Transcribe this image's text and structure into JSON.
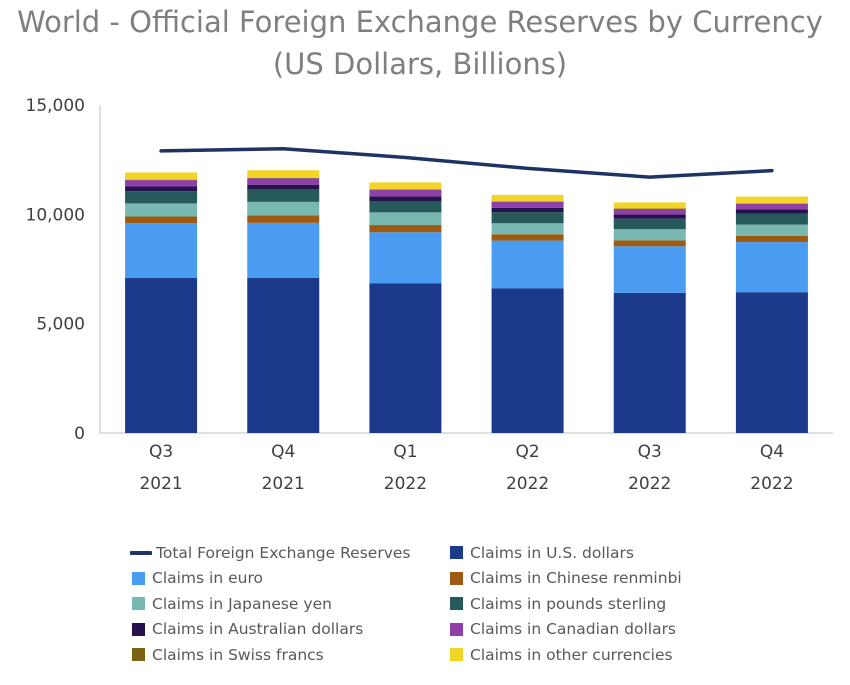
{
  "title_line1": "World - Official Foreign Exchange Reserves by Currency",
  "title_line2": "(US Dollars, Billions)",
  "chart_data": {
    "type": "bar",
    "stacked": true,
    "categories": [
      [
        "Q3",
        "2021"
      ],
      [
        "Q4",
        "2021"
      ],
      [
        "Q1",
        "2022"
      ],
      [
        "Q2",
        "2022"
      ],
      [
        "Q3",
        "2022"
      ],
      [
        "Q4",
        "2022"
      ]
    ],
    "ylim": [
      0,
      15000
    ],
    "yticks": [
      0,
      5000,
      10000,
      15000
    ],
    "ytick_labels": [
      "0",
      "5,000",
      "10,000",
      "15,000"
    ],
    "grid": false,
    "legend_position": "bottom",
    "series": [
      {
        "name": "Claims in U.S. dollars",
        "color": "#1b3a8c",
        "values": [
          7090,
          7090,
          6850,
          6620,
          6410,
          6440
        ]
      },
      {
        "name": "Claims in euro",
        "color": "#4a9cf0",
        "values": [
          2500,
          2520,
          2330,
          2180,
          2130,
          2290
        ]
      },
      {
        "name": "Claims in Chinese renminbi",
        "color": "#9c5a12",
        "values": [
          310,
          340,
          330,
          290,
          270,
          280
        ]
      },
      {
        "name": "Claims in Japanese yen",
        "color": "#79b8b0",
        "values": [
          600,
          620,
          580,
          500,
          510,
          520
        ]
      },
      {
        "name": "Claims in pounds sterling",
        "color": "#265a5a",
        "values": [
          560,
          570,
          520,
          510,
          480,
          510
        ]
      },
      {
        "name": "Claims in Australian dollars",
        "color": "#26134d",
        "values": [
          215,
          215,
          215,
          200,
          190,
          185
        ]
      },
      {
        "name": "Claims in Canadian dollars",
        "color": "#8e3fa8",
        "values": [
          290,
          290,
          290,
          270,
          255,
          255
        ]
      },
      {
        "name": "Claims in Swiss francs",
        "color": "#7a6414",
        "values": [
          20,
          25,
          20,
          20,
          20,
          20
        ]
      },
      {
        "name": "Claims in other currencies",
        "color": "#f2d327",
        "values": [
          330,
          345,
          325,
          300,
          280,
          310
        ]
      }
    ],
    "line_series": {
      "name": "Total Foreign Exchange Reserves",
      "color": "#1f3264",
      "values": [
        12900,
        13000,
        12600,
        12100,
        11700,
        12000
      ]
    }
  },
  "legend": [
    {
      "label": "Total Foreign Exchange Reserves",
      "color": "#1f3264",
      "kind": "line"
    },
    {
      "label": "Claims in U.S. dollars",
      "color": "#1b3a8c",
      "kind": "box"
    },
    {
      "label": "Claims in euro",
      "color": "#4a9cf0",
      "kind": "box"
    },
    {
      "label": "Claims in Chinese renminbi",
      "color": "#9c5a12",
      "kind": "box"
    },
    {
      "label": "Claims in Japanese yen",
      "color": "#79b8b0",
      "kind": "box"
    },
    {
      "label": "Claims in pounds sterling",
      "color": "#265a5a",
      "kind": "box"
    },
    {
      "label": "Claims in Australian dollars",
      "color": "#26134d",
      "kind": "box"
    },
    {
      "label": "Claims in Canadian dollars",
      "color": "#8e3fa8",
      "kind": "box"
    },
    {
      "label": "Claims in Swiss francs",
      "color": "#7a6414",
      "kind": "box"
    },
    {
      "label": "Claims in other currencies",
      "color": "#f2d327",
      "kind": "box"
    }
  ]
}
